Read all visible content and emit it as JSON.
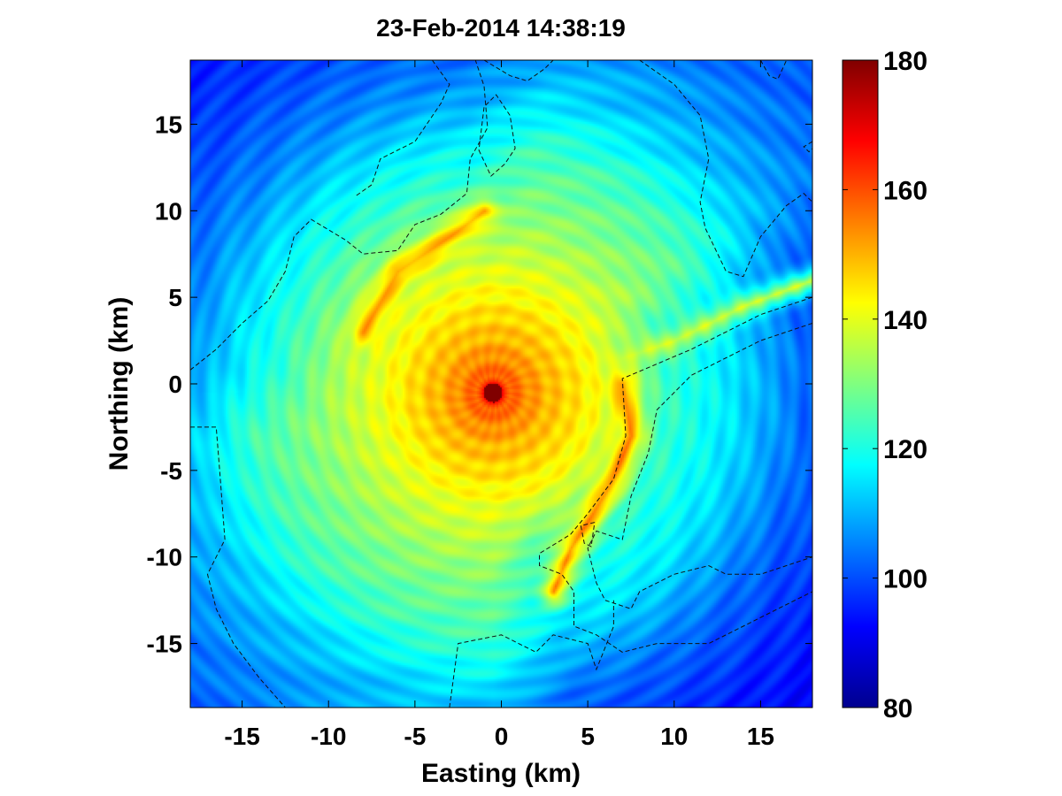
{
  "chart_data": {
    "type": "heatmap",
    "title": "23-Feb-2014 14:38:19",
    "xlabel": "Easting (km)",
    "ylabel": "Northing (km)",
    "xlim": [
      -18,
      18
    ],
    "ylim": [
      -18.7,
      18.7
    ],
    "x_ticks": [
      -15,
      -10,
      -5,
      0,
      5,
      10,
      15
    ],
    "y_ticks": [
      -15,
      -10,
      -5,
      0,
      5,
      10,
      15
    ],
    "x_tick_labels": [
      "-15",
      "-10",
      "-5",
      "0",
      "5",
      "10",
      "15"
    ],
    "y_tick_labels": [
      "-15",
      "-10",
      "-5",
      "0",
      "5",
      "10",
      "15"
    ],
    "colorbar": {
      "range": [
        80,
        180
      ],
      "ticks": [
        80,
        100,
        120,
        140,
        160,
        180
      ],
      "tick_labels": [
        "80",
        "100",
        "120",
        "140",
        "160",
        "180"
      ],
      "colormap": "jet"
    },
    "grid": false,
    "source": {
      "x": -0.5,
      "y": -0.5,
      "value": 180
    },
    "field_model": {
      "radial_profile": [
        [
          0,
          178
        ],
        [
          1,
          158
        ],
        [
          3,
          150
        ],
        [
          6,
          142
        ],
        [
          10,
          132
        ],
        [
          14,
          124
        ],
        [
          18,
          112
        ],
        [
          22,
          105
        ],
        [
          27,
          100
        ]
      ],
      "suppressed_sector": [
        {
          "from_deg": -75,
          "to_deg": 20,
          "depth": 9,
          "start_km": 6
        },
        {
          "from_deg": 95,
          "to_deg": 175,
          "depth": 6,
          "start_km": 9
        }
      ]
    },
    "ridges": [
      {
        "points": [
          [
            -8,
            3
          ],
          [
            -6,
            6.5
          ],
          [
            -3,
            8.5
          ],
          [
            -1,
            10
          ]
        ],
        "value": 152
      },
      {
        "points": [
          [
            7,
            0
          ],
          [
            7.5,
            -3
          ],
          [
            6.2,
            -6
          ],
          [
            4,
            -9.5
          ],
          [
            3,
            -12
          ]
        ],
        "value": 155
      },
      {
        "points": [
          [
            7,
            1.5
          ],
          [
            10,
            2.5
          ],
          [
            14,
            4.5
          ],
          [
            18,
            6
          ]
        ],
        "value": 138
      }
    ],
    "coastlines": [
      [
        [
          -18,
          0.8
        ],
        [
          -16.5,
          2
        ],
        [
          -15,
          3.5
        ],
        [
          -13.5,
          4.8
        ],
        [
          -12.5,
          6.5
        ],
        [
          -12,
          8.5
        ],
        [
          -11,
          9.5
        ],
        [
          -9,
          8.3
        ],
        [
          -8,
          7.5
        ],
        [
          -6,
          7.7
        ],
        [
          -5,
          9.2
        ],
        [
          -3.5,
          9.8
        ],
        [
          -2,
          11
        ],
        [
          -1.8,
          13
        ],
        [
          -0.8,
          14.8
        ],
        [
          -1,
          17.2
        ],
        [
          -1.5,
          18.7
        ]
      ],
      [
        [
          -4,
          18.7
        ],
        [
          -3,
          17.3
        ],
        [
          -3.5,
          16.2
        ],
        [
          -5,
          14
        ],
        [
          -7,
          13
        ],
        [
          -7.5,
          11.5
        ],
        [
          -8.5,
          10.8
        ]
      ],
      [
        [
          -1,
          18.7
        ],
        [
          0.5,
          17.8
        ],
        [
          1.5,
          17.5
        ],
        [
          2.5,
          18.2
        ],
        [
          3,
          18.7
        ]
      ],
      [
        [
          -1.3,
          13.5
        ],
        [
          -0.6,
          12
        ],
        [
          0.2,
          12.7
        ],
        [
          0.8,
          13.6
        ],
        [
          0.5,
          15.5
        ],
        [
          -0.3,
          16.7
        ],
        [
          -1,
          16
        ],
        [
          -1.3,
          13.5
        ]
      ],
      [
        [
          -18,
          -2.5
        ],
        [
          -16.5,
          -2.5
        ],
        [
          -16.3,
          -5
        ],
        [
          -16,
          -9
        ],
        [
          -17,
          -11
        ],
        [
          -16.5,
          -13
        ],
        [
          -15.5,
          -15
        ],
        [
          -14,
          -17
        ],
        [
          -12.5,
          -18.7
        ]
      ],
      [
        [
          -3,
          -18.7
        ],
        [
          -2.5,
          -15
        ],
        [
          0,
          -14.5
        ],
        [
          2,
          -15.5
        ],
        [
          3,
          -14.5
        ],
        [
          5,
          -15
        ],
        [
          5.5,
          -16.5
        ],
        [
          6.5,
          -14
        ],
        [
          6.5,
          -12.5
        ]
      ],
      [
        [
          8,
          18.7
        ],
        [
          10,
          17.3
        ],
        [
          11.5,
          15.5
        ],
        [
          12,
          13
        ],
        [
          11.5,
          10.5
        ],
        [
          11.8,
          9
        ],
        [
          13,
          6.5
        ],
        [
          14,
          6.2
        ],
        [
          15,
          8.5
        ],
        [
          16.5,
          10.3
        ],
        [
          17.5,
          11
        ],
        [
          18,
          10.5
        ]
      ],
      [
        [
          15,
          18.7
        ],
        [
          15.5,
          17.8
        ],
        [
          16,
          17.6
        ],
        [
          16.5,
          18.7
        ]
      ],
      [
        [
          18,
          14
        ],
        [
          17.5,
          13.7
        ],
        [
          17.8,
          13.4
        ],
        [
          18,
          13.6
        ]
      ],
      [
        [
          18,
          5
        ],
        [
          15,
          4
        ],
        [
          11,
          2
        ],
        [
          7,
          0.3
        ],
        [
          7.2,
          -3
        ],
        [
          6.5,
          -5.5
        ],
        [
          5,
          -7.5
        ],
        [
          4,
          -8.7
        ],
        [
          2.2,
          -9.8
        ],
        [
          2.2,
          -10.5
        ],
        [
          3.5,
          -11
        ],
        [
          4.2,
          -12
        ],
        [
          4.2,
          -14
        ],
        [
          5.5,
          -14.5
        ],
        [
          7,
          -15.5
        ],
        [
          9,
          -15
        ],
        [
          12,
          -15
        ],
        [
          14,
          -14
        ],
        [
          16,
          -13
        ],
        [
          18,
          -12
        ]
      ],
      [
        [
          18,
          3.5
        ],
        [
          15,
          2.5
        ],
        [
          11,
          0.5
        ],
        [
          9,
          -1.5
        ],
        [
          8.5,
          -4
        ],
        [
          7.5,
          -6.5
        ],
        [
          7,
          -9
        ],
        [
          5.5,
          -8.5
        ],
        [
          5,
          -9.5
        ],
        [
          5.5,
          -11.5
        ],
        [
          6,
          -12.5
        ],
        [
          7.5,
          -13
        ],
        [
          8,
          -12
        ],
        [
          10,
          -11
        ],
        [
          12,
          -10.5
        ],
        [
          13,
          -11
        ],
        [
          15,
          -11
        ],
        [
          16.5,
          -10.5
        ],
        [
          18,
          -10
        ]
      ],
      [
        [
          5.4,
          -8
        ],
        [
          4.6,
          -8.2
        ],
        [
          4.8,
          -9.2
        ],
        [
          5.2,
          -9.4
        ],
        [
          5.4,
          -8
        ]
      ]
    ]
  }
}
